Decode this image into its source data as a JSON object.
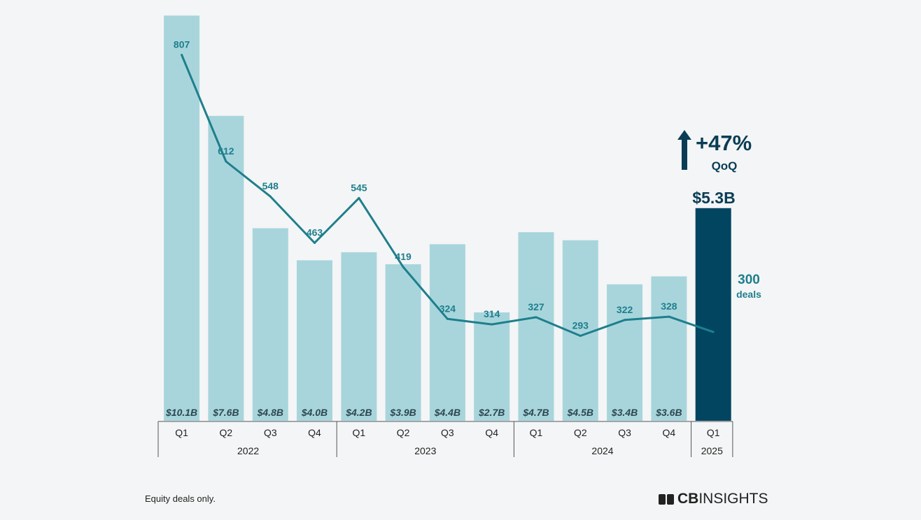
{
  "chart_data": {
    "type": "bar",
    "categories": [
      "Q1",
      "Q2",
      "Q3",
      "Q4",
      "Q1",
      "Q2",
      "Q3",
      "Q4",
      "Q1",
      "Q2",
      "Q3",
      "Q4",
      "Q1"
    ],
    "year_groups": [
      {
        "label": "2022",
        "count": 4
      },
      {
        "label": "2023",
        "count": 4
      },
      {
        "label": "2024",
        "count": 4
      },
      {
        "label": "2025",
        "count": 1
      }
    ],
    "series": [
      {
        "name": "Funding",
        "type": "bar",
        "values": [
          10.1,
          7.6,
          4.8,
          4.0,
          4.2,
          3.9,
          4.4,
          2.7,
          4.7,
          4.5,
          3.4,
          3.6,
          5.3
        ],
        "labels": [
          "$10.1B",
          "$7.6B",
          "$4.8B",
          "$4.0B",
          "$4.2B",
          "$3.9B",
          "$4.4B",
          "$2.7B",
          "$4.7B",
          "$4.5B",
          "$3.4B",
          "$3.6B",
          "$5.3B"
        ]
      },
      {
        "name": "Deals",
        "type": "line",
        "values": [
          807,
          612,
          548,
          463,
          545,
          419,
          324,
          314,
          327,
          293,
          322,
          328,
          300
        ],
        "labels": [
          "807",
          "612",
          "548",
          "463",
          "545",
          "419",
          "324",
          "314",
          "327",
          "293",
          "322",
          "328",
          "300"
        ]
      }
    ],
    "annotations": {
      "change_value": "+47%",
      "change_unit": "QoQ",
      "last_bar_label": "$5.3B",
      "last_deal_value": "300",
      "last_deal_unit": "deals"
    },
    "colors": {
      "bar": "#a8d5dc",
      "bar_highlight": "#024561",
      "line": "#1e7f8c",
      "bar_label": "#2d4750"
    }
  },
  "footnote": "Equity deals only.",
  "brand": {
    "bold": "CB",
    "rest": "INSIGHTS"
  }
}
